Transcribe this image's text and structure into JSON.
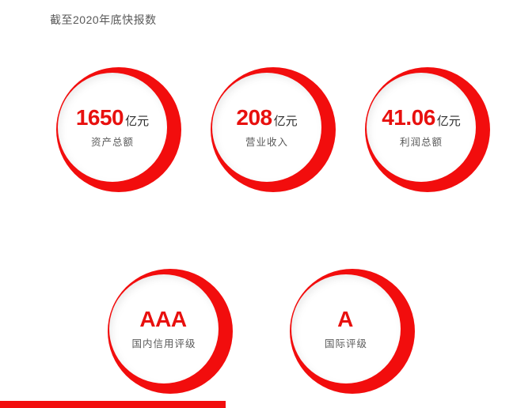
{
  "page": {
    "title": "截至2020年底快报数",
    "background": "#ffffff"
  },
  "colors": {
    "accent_red": "#f20d0d",
    "number_red": "#e8100e",
    "unit_dark": "#2e2e2e",
    "label_gray": "#595959"
  },
  "stats": [
    {
      "value": "1650",
      "unit": "亿元",
      "label": "资产总额"
    },
    {
      "value": "208",
      "unit": "亿元",
      "label": "营业收入"
    },
    {
      "value": "41.06",
      "unit": "亿元",
      "label": "利润总额"
    },
    {
      "value": "AAA",
      "unit": "",
      "label": "国内信用评级"
    },
    {
      "value": "A",
      "unit": "",
      "label": "国际评级"
    }
  ],
  "chart_data": {
    "type": "table",
    "title": "截至2020年底快报数",
    "items": [
      {
        "label": "资产总额",
        "value": 1650,
        "unit": "亿元"
      },
      {
        "label": "营业收入",
        "value": 208,
        "unit": "亿元"
      },
      {
        "label": "利润总额",
        "value": 41.06,
        "unit": "亿元"
      },
      {
        "label": "国内信用评级",
        "value": "AAA",
        "unit": ""
      },
      {
        "label": "国际评级",
        "value": "A",
        "unit": ""
      }
    ],
    "layout": "five KPI crescent circles: three on top row, two on bottom row"
  }
}
